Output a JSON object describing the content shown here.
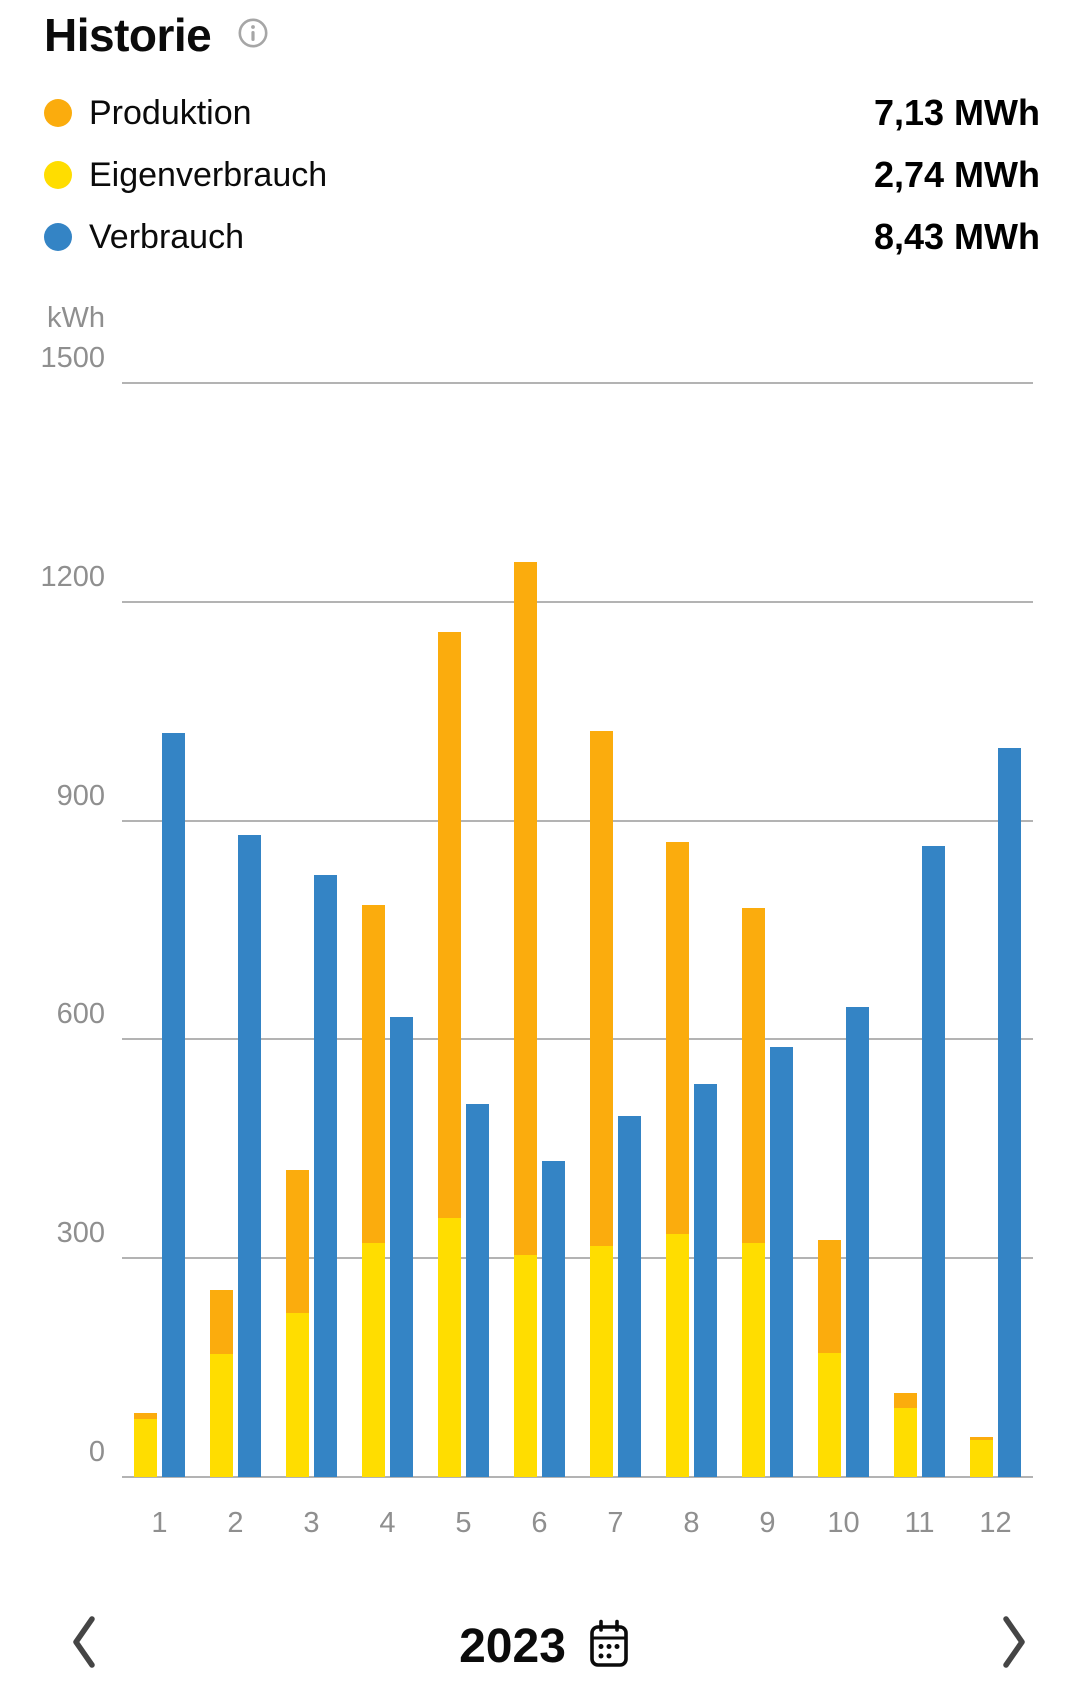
{
  "header": {
    "title": "Historie"
  },
  "legend": {
    "items": [
      {
        "label": "Produktion",
        "value": "7,13 MWh",
        "color": "#FBAC0D"
      },
      {
        "label": "Eigenverbrauch",
        "value": "2,74 MWh",
        "color": "#FFDD00"
      },
      {
        "label": "Verbrauch",
        "value": "8,43 MWh",
        "color": "#3484C5"
      }
    ]
  },
  "chart_data": {
    "type": "bar",
    "unit": "kWh",
    "categories": [
      1,
      2,
      3,
      4,
      5,
      6,
      7,
      8,
      9,
      10,
      11,
      12
    ],
    "series": [
      {
        "name": "Produktion",
        "color": "#FBAC0D",
        "values": [
          88,
          256,
          421,
          784,
          1158,
          1255,
          1023,
          870,
          780,
          325,
          115,
          55
        ]
      },
      {
        "name": "Eigenverbrauch",
        "color": "#FFDD00",
        "values": [
          80,
          168,
          225,
          321,
          355,
          304,
          317,
          333,
          321,
          170,
          95,
          51
        ]
      },
      {
        "name": "Verbrauch",
        "color": "#3484C5",
        "values": [
          1020,
          880,
          825,
          631,
          511,
          433,
          495,
          539,
          590,
          644,
          865,
          1000
        ]
      }
    ],
    "totals": {
      "Produktion": "7,13 MWh",
      "Eigenverbrauch": "2,74 MWh",
      "Verbrauch": "8,43 MWh"
    },
    "ylabel": "kWh",
    "yticks": [
      0,
      300,
      600,
      900,
      1200,
      1500
    ],
    "ylim": [
      0,
      1500
    ],
    "grid": "horizontal",
    "stacking": "Eigenverbrauch is drawn inside the Produktion bar; Verbrauch is a separate bar per month",
    "legend_position": "top-left"
  },
  "footer": {
    "year": "2023"
  }
}
